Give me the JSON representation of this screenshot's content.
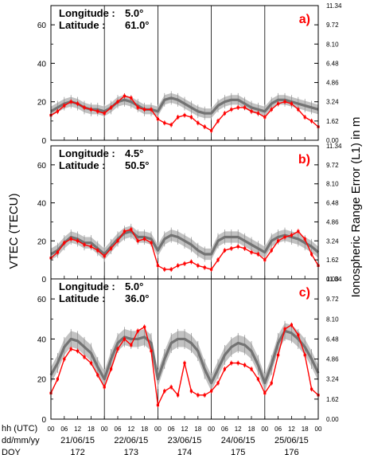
{
  "chart_data": {
    "type": "line",
    "ylabel_left": "VTEC (TECU)",
    "ylabel_right": "Ionospheric Range Error (L1) in m",
    "left_ylim": [
      0,
      70
    ],
    "left_yticks": [
      0,
      20,
      40,
      60
    ],
    "right_yticks": [
      "0.00",
      "1.62",
      "3.24",
      "4.86",
      "6.48",
      "8.10",
      "9.72",
      "11.34"
    ],
    "x_row_labels": [
      "hh (UTC)",
      "dd/mm/yy",
      "DOY"
    ],
    "hour_ticks": [
      "00",
      "06",
      "12",
      "18"
    ],
    "x_end_tick": "00",
    "dates": [
      "21/06/15",
      "22/06/15",
      "23/06/15",
      "24/06/15",
      "25/06/15"
    ],
    "doy": [
      "172",
      "173",
      "174",
      "175",
      "176"
    ],
    "colors": {
      "observed": "#ff0000",
      "model": "#737373",
      "band": "#c2c2c2"
    },
    "panels": [
      {
        "label": "a)",
        "lon_label": "Longitude",
        "lon": "5.0",
        "lat_label": "Latitude",
        "lat": "61.0",
        "hours": [
          0,
          3,
          6,
          9,
          12,
          15,
          18,
          21,
          24,
          27,
          30,
          33,
          36,
          39,
          42,
          45,
          48,
          51,
          54,
          57,
          60,
          63,
          66,
          69,
          72,
          75,
          78,
          81,
          84,
          87,
          90,
          93,
          96,
          99,
          102,
          105,
          108,
          111,
          114,
          117,
          120
        ],
        "model": [
          15,
          17,
          19,
          20,
          19,
          17,
          16,
          16,
          15,
          17,
          20,
          21,
          20,
          18,
          16,
          16,
          15,
          21,
          22,
          21,
          19,
          17,
          15,
          14,
          14,
          18,
          20,
          21,
          21,
          19,
          17,
          16,
          15,
          19,
          21,
          21,
          20,
          19,
          18,
          17,
          16
        ],
        "band": [
          2.5,
          2.5,
          2.5,
          2.5,
          2.5,
          2.5,
          2.5,
          2.5,
          2.5,
          2.5,
          2.5,
          2.5,
          2.5,
          2.5,
          2.5,
          2.5,
          2.5,
          2.5,
          2.5,
          2.5,
          2.5,
          2.5,
          2.5,
          2.5,
          2.5,
          2.5,
          2.5,
          2.5,
          2.5,
          2.5,
          2.5,
          2.5,
          2.5,
          2.5,
          2.5,
          2.5,
          2.5,
          2.5,
          2.5,
          2.5,
          2.5
        ],
        "observed": [
          13,
          15,
          18,
          20,
          19,
          17,
          16,
          15,
          14,
          17,
          20,
          23,
          22,
          17,
          16,
          16,
          11,
          9,
          8,
          12,
          13,
          12,
          9,
          7,
          5,
          10,
          14,
          16,
          17,
          17,
          15,
          14,
          12,
          16,
          19,
          20,
          19,
          16,
          12,
          10,
          7
        ]
      },
      {
        "label": "b)",
        "lon_label": "Longitude",
        "lon": "4.5",
        "lat_label": "Latitude",
        "lat": "50.5",
        "hours": [
          0,
          3,
          6,
          9,
          12,
          15,
          18,
          21,
          24,
          27,
          30,
          33,
          36,
          39,
          42,
          45,
          48,
          51,
          54,
          57,
          60,
          63,
          66,
          69,
          72,
          75,
          78,
          81,
          84,
          87,
          90,
          93,
          96,
          99,
          102,
          105,
          108,
          111,
          114,
          117,
          120
        ],
        "model": [
          13,
          15,
          19,
          22,
          21,
          19,
          19,
          16,
          13,
          17,
          21,
          24,
          25,
          22,
          22,
          21,
          15,
          21,
          23,
          22,
          20,
          18,
          15,
          13,
          13,
          20,
          22,
          22,
          22,
          20,
          18,
          16,
          14,
          20,
          22,
          23,
          22,
          21,
          19,
          17,
          14
        ],
        "band": [
          3,
          3,
          3,
          3,
          3,
          3,
          3,
          3,
          3,
          3,
          3,
          3,
          3,
          3,
          3,
          3,
          3,
          3,
          3,
          3,
          3,
          3,
          3,
          3,
          3,
          3,
          3,
          3,
          3,
          3,
          3,
          3,
          3,
          3,
          3,
          3,
          3,
          3,
          3,
          3,
          3
        ],
        "observed": [
          11,
          14,
          19,
          21,
          20,
          18,
          17,
          15,
          12,
          16,
          20,
          25,
          26,
          20,
          21,
          19,
          7,
          5,
          5,
          7,
          8,
          9,
          7,
          6,
          5,
          10,
          15,
          16,
          17,
          16,
          14,
          13,
          10,
          15,
          20,
          22,
          23,
          25,
          21,
          13,
          7
        ]
      },
      {
        "label": "c)",
        "lon_label": "Longitude",
        "lon": "5.0",
        "lat_label": "Latitude",
        "lat": "36.0",
        "hours": [
          0,
          3,
          6,
          9,
          12,
          15,
          18,
          21,
          24,
          27,
          30,
          33,
          36,
          39,
          42,
          45,
          48,
          51,
          54,
          57,
          60,
          63,
          66,
          69,
          72,
          75,
          78,
          81,
          84,
          87,
          90,
          93,
          96,
          99,
          102,
          105,
          108,
          111,
          114,
          117,
          120
        ],
        "model": [
          22,
          28,
          36,
          40,
          39,
          36,
          33,
          26,
          20,
          30,
          38,
          41,
          40,
          40,
          41,
          38,
          20,
          30,
          38,
          40,
          40,
          38,
          34,
          25,
          18,
          25,
          32,
          36,
          38,
          37,
          34,
          27,
          18,
          27,
          38,
          44,
          43,
          40,
          36,
          30,
          23
        ],
        "band": [
          4,
          4,
          4,
          4,
          4,
          4,
          4,
          4,
          4,
          4,
          4,
          4,
          4,
          4,
          4,
          4,
          4,
          4,
          4,
          4,
          4,
          4,
          4,
          4,
          4,
          4,
          4,
          4,
          4,
          4,
          4,
          4,
          4,
          4,
          4,
          4,
          4,
          4,
          4,
          4,
          4
        ],
        "observed": [
          13,
          20,
          30,
          35,
          34,
          31,
          28,
          22,
          16,
          25,
          35,
          40,
          37,
          44,
          46,
          34,
          7,
          14,
          16,
          12,
          28,
          14,
          12,
          12,
          14,
          18,
          25,
          28,
          28,
          27,
          25,
          20,
          13,
          18,
          32,
          45,
          47,
          42,
          32,
          15,
          12
        ]
      }
    ]
  }
}
